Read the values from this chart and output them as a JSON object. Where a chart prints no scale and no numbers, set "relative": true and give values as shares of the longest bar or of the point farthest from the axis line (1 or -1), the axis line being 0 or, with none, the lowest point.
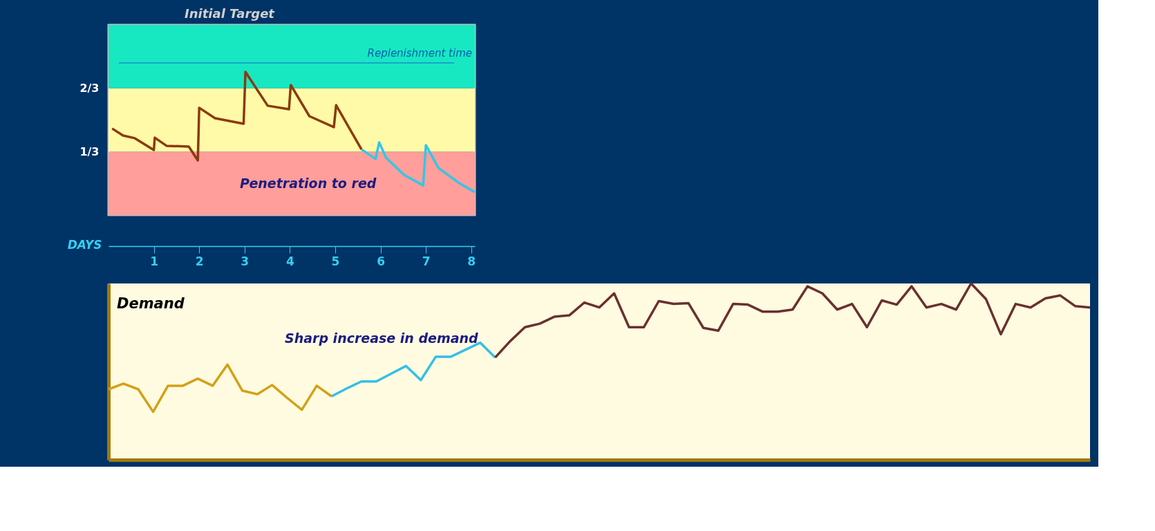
{
  "chart_data": [
    {
      "type": "line",
      "title": "Initial Target",
      "xlabel": "DAYS",
      "xlim": [
        0,
        8.08
      ],
      "xticks": [
        1,
        2,
        3,
        4,
        5,
        6,
        7,
        8
      ],
      "ylim": [
        0,
        1
      ],
      "yticks": [
        {
          "value": 0.333,
          "label": "1/3"
        },
        {
          "value": 0.667,
          "label": "2/3"
        }
      ],
      "grid": false,
      "legend": false,
      "bands": [
        {
          "axis": "y",
          "from": 0,
          "to": 0.333,
          "color": "#ff9e9a"
        },
        {
          "axis": "y",
          "from": 0.333,
          "to": 0.667,
          "color": "#fffaa8"
        },
        {
          "axis": "y",
          "from": 0.667,
          "to": 1,
          "color": "#17e8c2"
        }
      ],
      "ref_lines": [
        {
          "axis": "y",
          "value": 0.8,
          "label": "Replenishment time",
          "color": "#1a8fd0"
        }
      ],
      "series": [
        {
          "color": "#8b3a0f",
          "x": [
            0.08,
            0.32,
            0.58,
            1.0,
            1.02,
            1.28,
            1.77,
            1.97,
            2.0,
            2.35,
            2.98,
            3.02,
            3.51,
            3.98,
            4.02,
            4.43,
            4.97,
            5.02,
            5.58
          ],
          "values": [
            0.455,
            0.418,
            0.404,
            0.342,
            0.407,
            0.364,
            0.36,
            0.287,
            0.564,
            0.509,
            0.48,
            0.753,
            0.575,
            0.556,
            0.684,
            0.52,
            0.462,
            0.578,
            0.345
          ]
        },
        {
          "color": "#33c6e8",
          "x": [
            5.58,
            5.89,
            5.97,
            6.12,
            6.52,
            6.94,
            7.0,
            7.28,
            7.74,
            8.08
          ],
          "values": [
            0.345,
            0.295,
            0.382,
            0.302,
            0.211,
            0.156,
            0.367,
            0.247,
            0.167,
            0.12
          ]
        }
      ],
      "annotations": [
        "Penetration to red"
      ]
    },
    {
      "type": "line",
      "title": "Demand",
      "relative": true,
      "grid": false,
      "legend": false,
      "categories": [
        null,
        null,
        null,
        null,
        null,
        null,
        null,
        null,
        null,
        null,
        null,
        null,
        null,
        null,
        null,
        null,
        null,
        null,
        null,
        null,
        null,
        null,
        null,
        null,
        null,
        null,
        null,
        null,
        null,
        null,
        null,
        null,
        null,
        null,
        null,
        null,
        null,
        null,
        null,
        null,
        null,
        null,
        null,
        null,
        null,
        null,
        null,
        null,
        null,
        null,
        null,
        null,
        null,
        null,
        null,
        null,
        null,
        null,
        null,
        null,
        null,
        null,
        null,
        null,
        null,
        null,
        null
      ],
      "series": [
        {
          "color": "#d4a017",
          "values": [
            0.4,
            0.432,
            0.4,
            0.272,
            0.42,
            0.42,
            0.46,
            0.42,
            0.54,
            0.392,
            0.372,
            0.424,
            0.352,
            0.284,
            0.42,
            0.36,
            null,
            null,
            null,
            null,
            null,
            null,
            null,
            null,
            null,
            null,
            null,
            null,
            null,
            null,
            null,
            null,
            null,
            null,
            null,
            null,
            null,
            null,
            null,
            null,
            null,
            null,
            null,
            null,
            null,
            null,
            null,
            null,
            null,
            null,
            null,
            null,
            null,
            null,
            null,
            null,
            null,
            null,
            null,
            null,
            null,
            null,
            null,
            null,
            null,
            null,
            null
          ]
        },
        {
          "color": "#33bfe6",
          "values": [
            null,
            null,
            null,
            null,
            null,
            null,
            null,
            null,
            null,
            null,
            null,
            null,
            null,
            null,
            null,
            0.36,
            0.404,
            0.444,
            0.444,
            0.488,
            0.532,
            0.452,
            0.584,
            0.584,
            0.624,
            0.664,
            0.58,
            null,
            null,
            null,
            null,
            null,
            null,
            null,
            null,
            null,
            null,
            null,
            null,
            null,
            null,
            null,
            null,
            null,
            null,
            null,
            null,
            null,
            null,
            null,
            null,
            null,
            null,
            null,
            null,
            null,
            null,
            null,
            null,
            null,
            null,
            null,
            null,
            null,
            null,
            null,
            null
          ]
        },
        {
          "color": "#6b2f2f",
          "values": [
            null,
            null,
            null,
            null,
            null,
            null,
            null,
            null,
            null,
            null,
            null,
            null,
            null,
            null,
            null,
            null,
            null,
            null,
            null,
            null,
            null,
            null,
            null,
            null,
            null,
            null,
            0.58,
            0.672,
            0.752,
            0.772,
            0.812,
            0.82,
            0.892,
            0.864,
            0.944,
            0.752,
            0.752,
            0.9,
            0.884,
            0.888,
            0.748,
            0.732,
            0.884,
            0.88,
            0.84,
            0.84,
            0.852,
            0.984,
            0.944,
            0.852,
            0.884,
            0.752,
            0.904,
            0.88,
            0.984,
            0.864,
            0.884,
            0.852,
            1.0,
            0.912,
            0.712,
            0.884,
            0.864,
            0.916,
            0.932,
            0.872,
            0.864
          ]
        }
      ],
      "annotations": [
        "Sharp increase in demand"
      ]
    }
  ]
}
